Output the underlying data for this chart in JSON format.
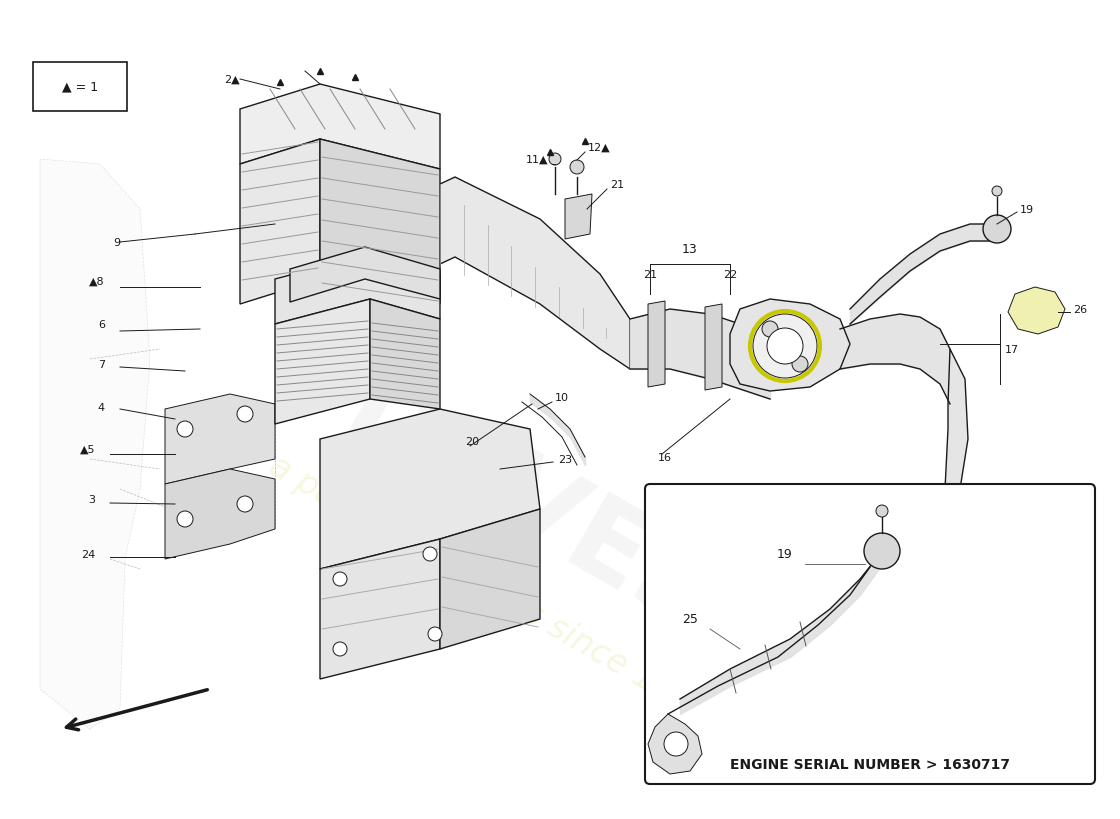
{
  "background_color": "#ffffff",
  "line_color": "#1a1a1a",
  "fill_light": "#eeeeee",
  "fill_mid": "#d8d8d8",
  "fill_dark": "#c0c0c0",
  "fill_yellow": "#f0f0b0",
  "watermark_text": "a passion for parts since 1985",
  "engine_note": "ENGINE SERIAL NUMBER > 1630717",
  "legend_text": "▲ = 1"
}
